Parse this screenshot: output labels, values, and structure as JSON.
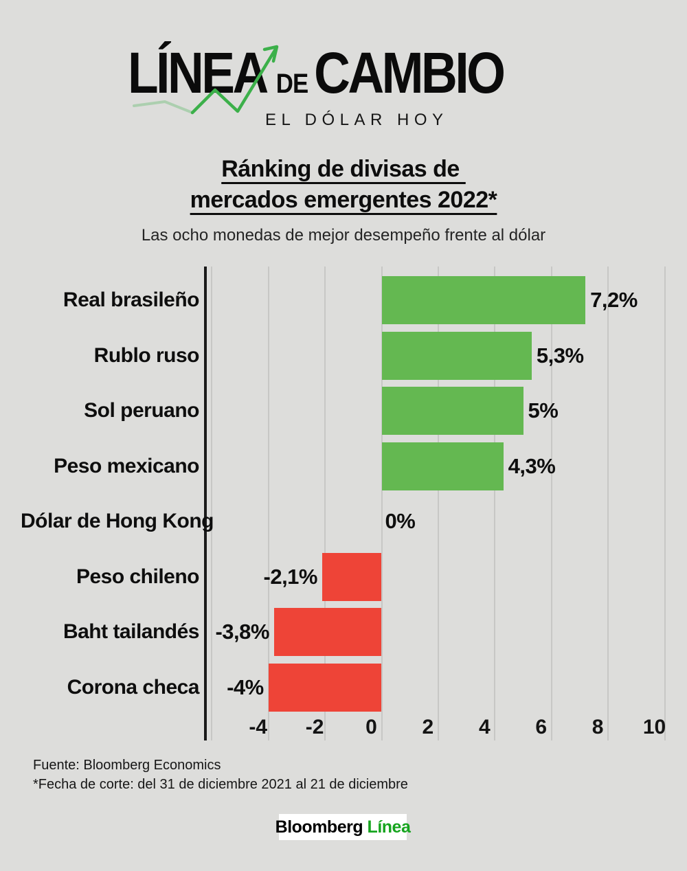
{
  "logo": {
    "brand_linea": "LÍNEA",
    "brand_de": "DE",
    "brand_cambio": "CAMBIO",
    "tagline": "EL DÓLAR HOY"
  },
  "title": {
    "line1": "Ránking de divisas de ",
    "line2": "mercados emergentes 2022*"
  },
  "subtitle": "Las ocho monedas de mejor desempeño frente al dólar",
  "chart_data": {
    "type": "bar",
    "orientation": "horizontal",
    "title": "Ránking de divisas de mercados emergentes 2022*",
    "subtitle": "Las ocho monedas de mejor desempeño frente al dólar",
    "categories": [
      "Real brasileño",
      "Rublo ruso",
      "Sol peruano",
      "Peso mexicano",
      "Dólar de Hong Kong",
      "Peso chileno",
      "Baht tailandés",
      "Corona checa"
    ],
    "values": [
      7.2,
      5.3,
      5,
      4.3,
      0,
      -2.1,
      -3.8,
      -4
    ],
    "value_labels": [
      "7,2%",
      "5,3%",
      "5%",
      "4,3%",
      "0%",
      "-2,1%",
      "-3,8%",
      "-4%"
    ],
    "x_ticks": [
      -4,
      -2,
      0,
      2,
      4,
      6,
      8,
      10
    ],
    "gridline_values": [
      -6,
      -4,
      -2,
      0,
      2,
      4,
      6,
      8,
      10
    ],
    "xlim": [
      -6.2,
      10.5
    ],
    "unit": "percent",
    "grid": "vertical-only",
    "positive_color": "#64b851",
    "negative_color": "#ee4437",
    "background_color": "#dddddb"
  },
  "footer": {
    "source": "Fuente: Bloomberg Economics",
    "note": "*Fecha de corte: del 31 de diciembre 2021 al 21 de diciembre"
  },
  "badge": {
    "part1": "Bloomberg",
    "part2": " Línea"
  }
}
